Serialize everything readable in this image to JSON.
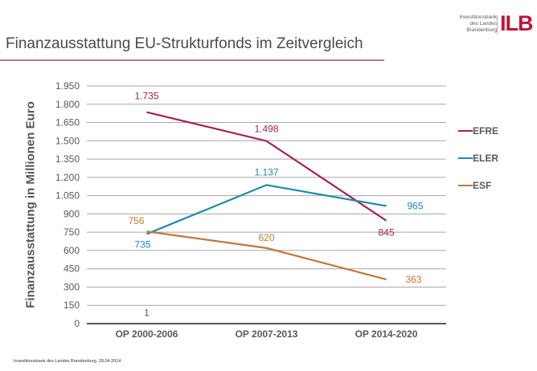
{
  "logo": {
    "lines": [
      "Investitionsbank",
      "des Landes",
      "Brandenburg"
    ],
    "mark": "ILB",
    "color": "#c2123a"
  },
  "header": {
    "title": "Finanzausstattung EU-Strukturfonds im Zeitvergleich",
    "rule_color": "#b07a88"
  },
  "footer": {
    "text": "Investitionsbank des Landes Brandenburg, 28.04.2014"
  },
  "chart_data": {
    "type": "line",
    "title": "Finanzausstattung EU-Strukturfonds im Zeitvergleich",
    "xlabel": "",
    "ylabel": "Finanzausstattung in Millionen Euro",
    "categories": [
      "OP 2000-2006",
      "OP 2007-2013",
      "OP 2014-2020"
    ],
    "ylim": [
      0,
      1950
    ],
    "yticks": [
      0,
      150,
      300,
      450,
      600,
      750,
      900,
      1050,
      1200,
      1350,
      1500,
      1650,
      1800,
      1950
    ],
    "ytick_labels": [
      "0",
      "150",
      "300",
      "450",
      "600",
      "750",
      "900",
      "1.050",
      "1.200",
      "1.350",
      "1.500",
      "1.650",
      "1.800",
      "1.950"
    ],
    "grid": true,
    "legend_position": "right",
    "series": [
      {
        "name": "EFRE",
        "color": "#a6204e",
        "values": [
          1735,
          1498,
          845
        ],
        "labels": [
          "1.735",
          "1.498",
          "845"
        ]
      },
      {
        "name": "ELER",
        "color": "#1f8bad",
        "values": [
          735,
          1137,
          965
        ],
        "labels": [
          "735",
          "1.137",
          "965"
        ]
      },
      {
        "name": "ESF",
        "color": "#c0783a",
        "values": [
          756,
          620,
          363
        ],
        "labels": [
          "756",
          "620",
          "363"
        ]
      }
    ],
    "annotations": [
      {
        "text": "1",
        "category": "OP 2000-2006",
        "y": 90
      }
    ]
  }
}
